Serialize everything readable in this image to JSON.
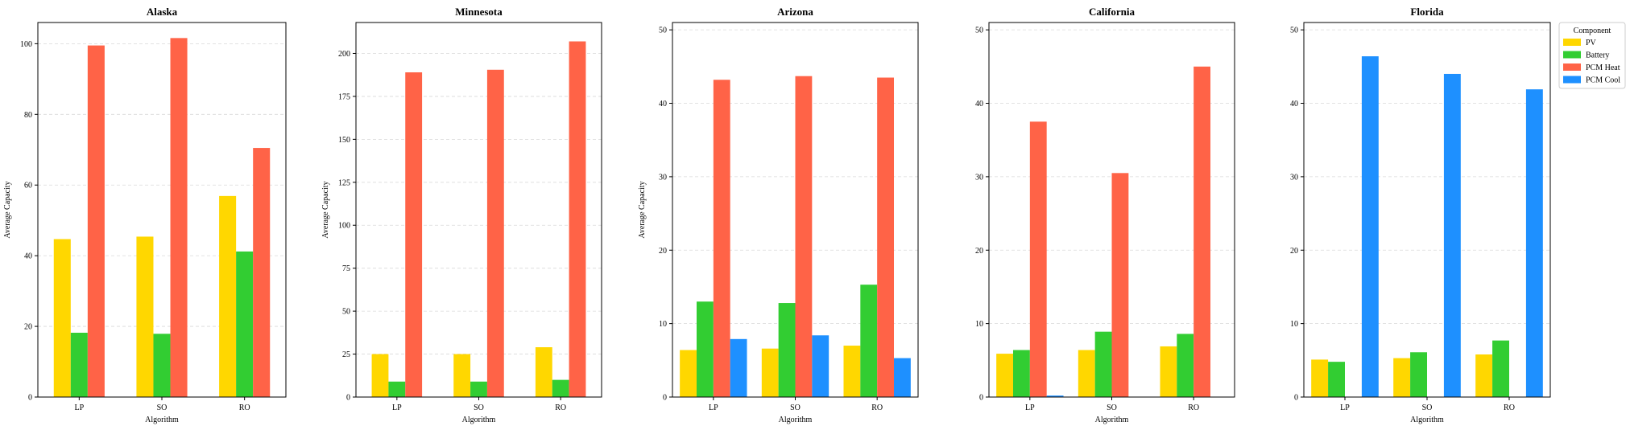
{
  "chart_data": {
    "type": "bar",
    "legend": {
      "title": "Component",
      "placement": "upper-right-outside",
      "entries": [
        {
          "name": "PV",
          "color": "#FFD700"
        },
        {
          "name": "Battery",
          "color": "#32CD32"
        },
        {
          "name": "PCM Heat",
          "color": "#FF6347"
        },
        {
          "name": "PCM Cool",
          "color": "#1E90FF"
        }
      ]
    },
    "grid": {
      "y": true,
      "style": "dashed"
    },
    "panels": [
      {
        "title": "Alaska",
        "xlabel": "Algorithm",
        "ylabel": "Average Capacity",
        "categories": [
          "LP",
          "SO",
          "RO"
        ],
        "ylim": [
          0,
          106
        ],
        "yticks": [
          0,
          20,
          40,
          60,
          80,
          100
        ],
        "tick_labels": [
          "0",
          "20",
          "40",
          "60",
          "80",
          "100"
        ],
        "series": [
          {
            "name": "PV",
            "values": [
              44.7,
              45.4,
              56.9
            ]
          },
          {
            "name": "Battery",
            "values": [
              18.2,
              17.9,
              41.2
            ]
          },
          {
            "name": "PCM Heat",
            "values": [
              99.5,
              101.6,
              70.5
            ]
          }
        ]
      },
      {
        "title": "Minnesota",
        "xlabel": "Algorithm",
        "ylabel": "Average Capacity",
        "categories": [
          "LP",
          "SO",
          "RO"
        ],
        "ylim": [
          0,
          218
        ],
        "yticks": [
          0,
          25,
          50,
          75,
          100,
          125,
          150,
          175,
          200
        ],
        "tick_labels": [
          "0",
          "25",
          "50",
          "75",
          "100",
          "125",
          "150",
          "175",
          "200"
        ],
        "series": [
          {
            "name": "PV",
            "values": [
              25.0,
              25.0,
              29.0
            ]
          },
          {
            "name": "Battery",
            "values": [
              9.0,
              9.0,
              10.0
            ]
          },
          {
            "name": "PCM Heat",
            "values": [
              189.0,
              190.5,
              207.0
            ]
          }
        ]
      },
      {
        "title": "Arizona",
        "xlabel": "Algorithm",
        "ylabel": "Average Capacity",
        "categories": [
          "LP",
          "SO",
          "RO"
        ],
        "ylim": [
          0,
          51
        ],
        "yticks": [
          0,
          10,
          20,
          30,
          40,
          50
        ],
        "tick_labels": [
          "0",
          "10",
          "20",
          "30",
          "40",
          "50"
        ],
        "series": [
          {
            "name": "PV",
            "values": [
              6.4,
              6.6,
              7.0
            ]
          },
          {
            "name": "Battery",
            "values": [
              13.0,
              12.8,
              15.3
            ]
          },
          {
            "name": "PCM Heat",
            "values": [
              43.2,
              43.7,
              43.5
            ]
          },
          {
            "name": "PCM Cool",
            "values": [
              7.9,
              8.4,
              5.3
            ]
          }
        ]
      },
      {
        "title": "California",
        "xlabel": "Algorithm",
        "ylabel": "",
        "categories": [
          "LP",
          "SO",
          "RO"
        ],
        "ylim": [
          0,
          51
        ],
        "yticks": [
          0,
          10,
          20,
          30,
          40,
          50
        ],
        "tick_labels": [
          "0",
          "10",
          "20",
          "30",
          "40",
          "50"
        ],
        "series": [
          {
            "name": "PV",
            "values": [
              5.9,
              6.4,
              6.9
            ]
          },
          {
            "name": "Battery",
            "values": [
              6.4,
              8.9,
              8.6
            ]
          },
          {
            "name": "PCM Heat",
            "values": [
              37.5,
              30.5,
              45.0
            ]
          },
          {
            "name": "PCM Cool",
            "values": [
              0.2,
              0,
              0
            ]
          }
        ]
      },
      {
        "title": "Florida",
        "xlabel": "Algorithm",
        "ylabel": "",
        "categories": [
          "LP",
          "SO",
          "RO"
        ],
        "ylim": [
          0,
          51
        ],
        "yticks": [
          0,
          10,
          20,
          30,
          40,
          50
        ],
        "tick_labels": [
          "0",
          "10",
          "20",
          "30",
          "40",
          "50"
        ],
        "series": [
          {
            "name": "PV",
            "values": [
              5.1,
              5.3,
              5.8
            ]
          },
          {
            "name": "Battery",
            "values": [
              4.8,
              6.1,
              7.7
            ]
          },
          {
            "name": "PCM Heat",
            "values": [
              0,
              0,
              0
            ]
          },
          {
            "name": "PCM Cool",
            "values": [
              46.4,
              44.0,
              41.9
            ]
          }
        ]
      }
    ]
  }
}
